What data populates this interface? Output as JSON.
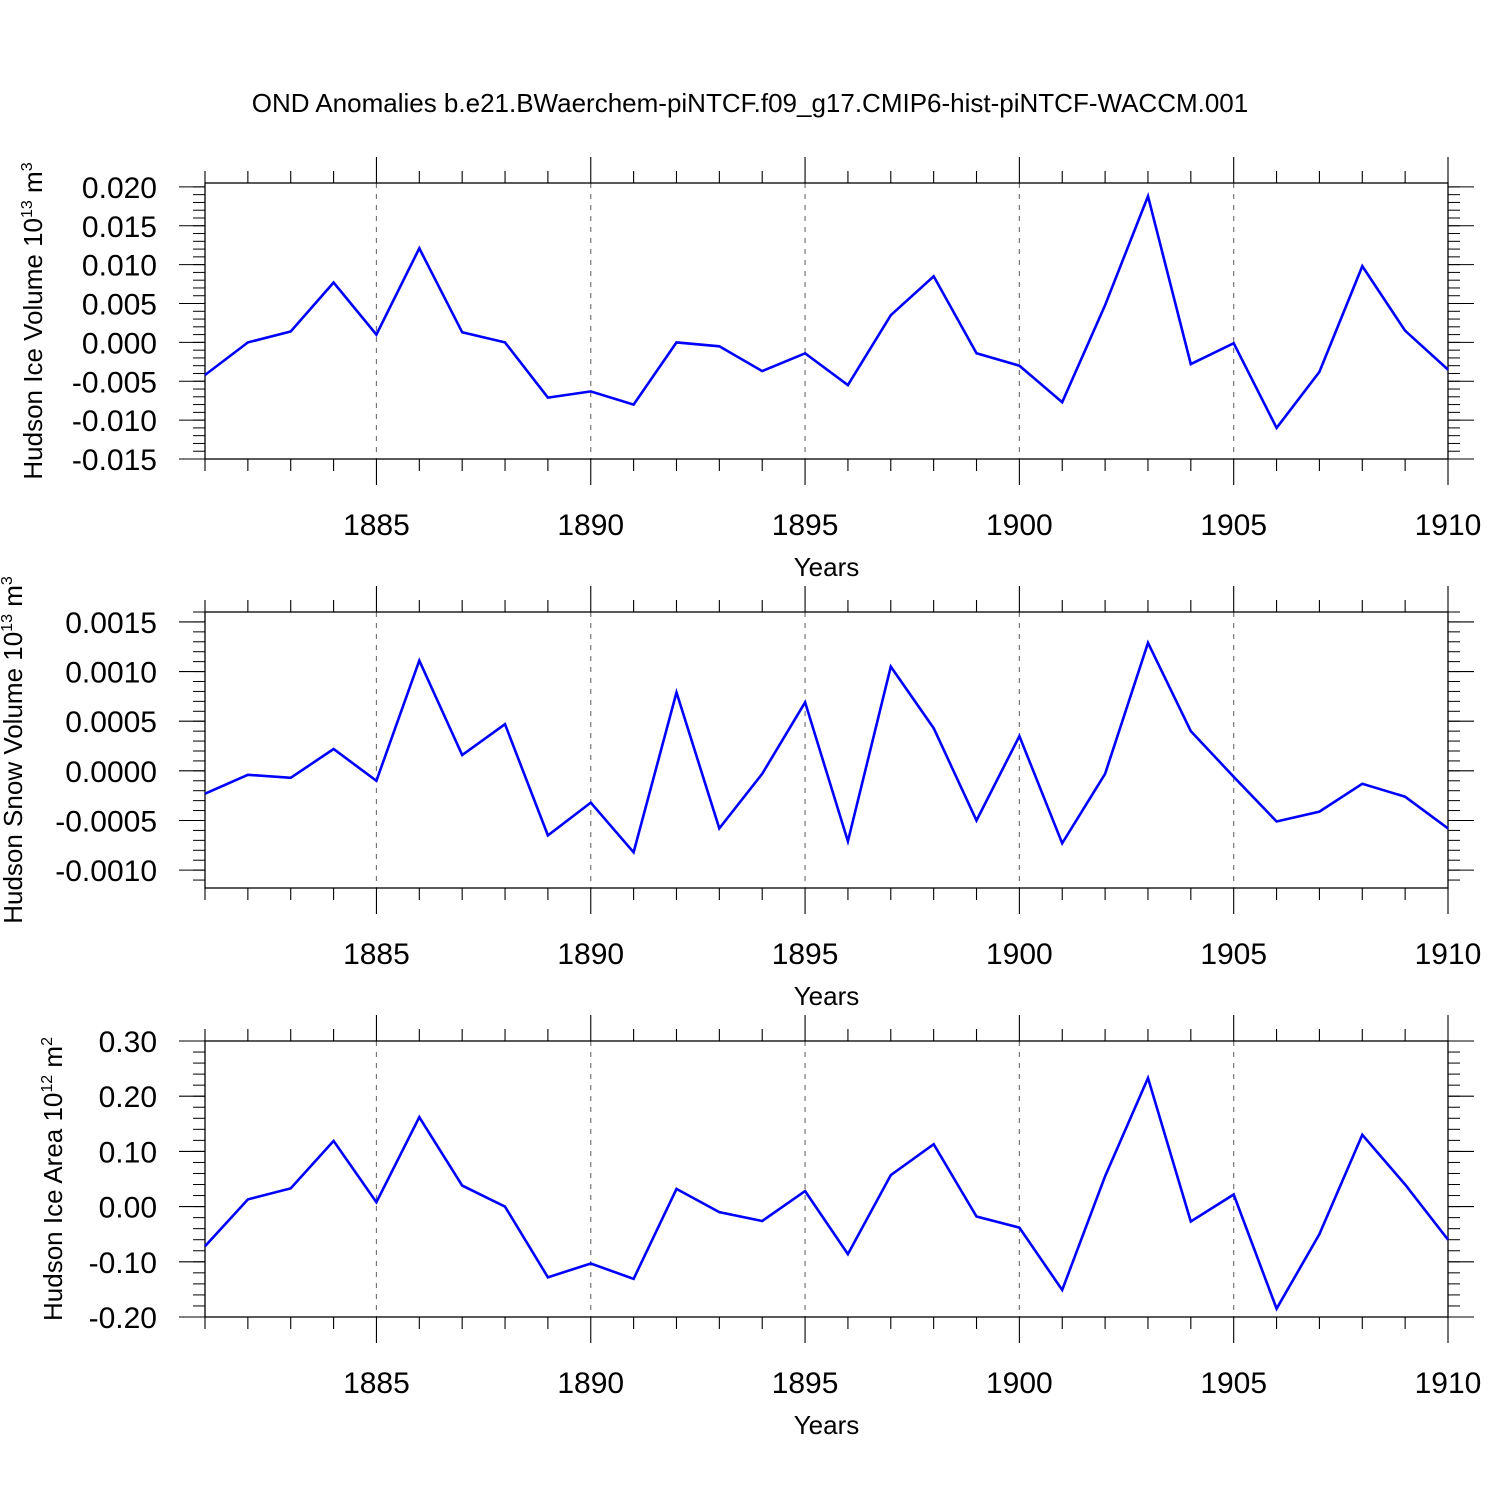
{
  "figure": {
    "title": "OND Anomalies b.e21.BWaerchem-piNTCF.f09_g17.CMIP6-hist-piNTCF-WACCM.001"
  },
  "chart_data": [
    {
      "type": "line",
      "ylabel": "Hudson Ice Volume 10",
      "ylabel_exp": "13",
      "ylabel_unit": " m",
      "ylabel_unit_exp": "3",
      "xlabel": "Years",
      "xlim": [
        1881,
        1910
      ],
      "ylim": [
        -0.015,
        0.0205
      ],
      "yticks": [
        0.02,
        0.015,
        0.01,
        0.005,
        0.0,
        -0.005,
        -0.01,
        -0.015
      ],
      "ytick_labels": [
        "0.020",
        "0.015",
        "0.010",
        "0.005",
        "0.000",
        "-0.005",
        "-0.010",
        "-0.015"
      ],
      "xticks": [
        1885,
        1890,
        1895,
        1900,
        1905,
        1910
      ],
      "xtick_labels": [
        "1885",
        "1890",
        "1895",
        "1900",
        "1905",
        "1910"
      ],
      "series_color": "#0000ff",
      "x": [
        1881,
        1882,
        1883,
        1884,
        1885,
        1886,
        1887,
        1888,
        1889,
        1890,
        1891,
        1892,
        1893,
        1894,
        1895,
        1896,
        1897,
        1898,
        1899,
        1900,
        1901,
        1902,
        1903,
        1904,
        1905,
        1906,
        1907,
        1908,
        1909,
        1910
      ],
      "values": [
        -0.0042,
        0.0,
        0.0014,
        0.0077,
        0.001,
        0.0121,
        0.0013,
        0.0,
        -0.0071,
        -0.0063,
        -0.008,
        0.0,
        -0.0005,
        -0.0037,
        -0.0014,
        -0.0055,
        0.0035,
        0.0085,
        -0.0014,
        -0.003,
        -0.0077,
        0.0048,
        0.0188,
        -0.0028,
        -0.0001,
        -0.011,
        -0.0038,
        0.0098,
        0.0015,
        -0.0035
      ]
    },
    {
      "type": "line",
      "ylabel": "Hudson Snow Volume 10",
      "ylabel_exp": "13",
      "ylabel_unit": " m",
      "ylabel_unit_exp": "3",
      "xlabel": "Years",
      "xlim": [
        1881,
        1910
      ],
      "ylim": [
        -0.00118,
        0.0016
      ],
      "yticks": [
        0.0015,
        0.001,
        0.0005,
        0.0,
        -0.0005,
        -0.001
      ],
      "ytick_labels": [
        "0.0015",
        "0.0010",
        "0.0005",
        "0.0000",
        "-0.0005",
        "-0.0010"
      ],
      "xticks": [
        1885,
        1890,
        1895,
        1900,
        1905,
        1910
      ],
      "xtick_labels": [
        "1885",
        "1890",
        "1895",
        "1900",
        "1905",
        "1910"
      ],
      "series_color": "#0000ff",
      "x": [
        1881,
        1882,
        1883,
        1884,
        1885,
        1886,
        1887,
        1888,
        1889,
        1890,
        1891,
        1892,
        1893,
        1894,
        1895,
        1896,
        1897,
        1898,
        1899,
        1900,
        1901,
        1902,
        1903,
        1904,
        1905,
        1906,
        1907,
        1908,
        1909,
        1910
      ],
      "values": [
        -0.00023,
        -4e-05,
        -7e-05,
        0.00022,
        -0.0001,
        0.00111,
        0.00016,
        0.00047,
        -0.00065,
        -0.00032,
        -0.00082,
        0.00079,
        -0.00058,
        -3e-05,
        0.00069,
        -0.00071,
        0.00105,
        0.00043,
        -0.0005,
        0.00035,
        -0.00073,
        -3e-05,
        0.00129,
        0.0004,
        -6e-05,
        -0.00051,
        -0.00041,
        -0.00013,
        -0.00026,
        -0.00058
      ]
    },
    {
      "type": "line",
      "ylabel": "Hudson Ice Area 10",
      "ylabel_exp": "12",
      "ylabel_unit": " m",
      "ylabel_unit_exp": "2",
      "xlabel": "Years",
      "xlim": [
        1881,
        1910
      ],
      "ylim": [
        -0.2,
        0.3
      ],
      "yticks": [
        0.3,
        0.2,
        0.1,
        0.0,
        -0.1,
        -0.2
      ],
      "ytick_labels": [
        "0.30",
        "0.20",
        "0.10",
        "0.00",
        "-0.10",
        "-0.20"
      ],
      "xticks": [
        1885,
        1890,
        1895,
        1900,
        1905,
        1910
      ],
      "xtick_labels": [
        "1885",
        "1890",
        "1895",
        "1900",
        "1905",
        "1910"
      ],
      "series_color": "#0000ff",
      "x": [
        1881,
        1882,
        1883,
        1884,
        1885,
        1886,
        1887,
        1888,
        1889,
        1890,
        1891,
        1892,
        1893,
        1894,
        1895,
        1896,
        1897,
        1898,
        1899,
        1900,
        1901,
        1902,
        1903,
        1904,
        1905,
        1906,
        1907,
        1908,
        1909,
        1910
      ],
      "values": [
        -0.072,
        0.013,
        0.033,
        0.119,
        0.008,
        0.162,
        0.038,
        0.0,
        -0.128,
        -0.103,
        -0.131,
        0.032,
        -0.01,
        -0.026,
        0.028,
        -0.086,
        0.057,
        0.113,
        -0.018,
        -0.038,
        -0.151,
        0.055,
        0.233,
        -0.027,
        0.022,
        -0.185,
        -0.05,
        0.13,
        0.04,
        -0.06
      ]
    }
  ]
}
